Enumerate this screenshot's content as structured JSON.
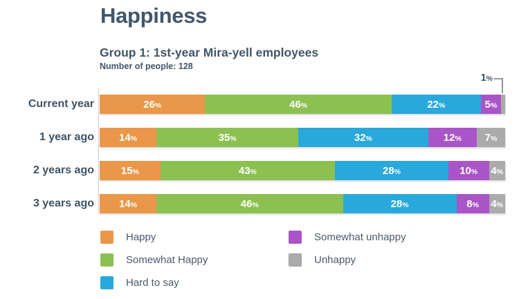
{
  "page": {
    "title": "Happiness",
    "subtitle": "Group 1: 1st-year Mira-yell employees",
    "sample_note": "Number of people: 128"
  },
  "chart_data": {
    "type": "bar",
    "orientation": "horizontal",
    "stacked": true,
    "unit": "%",
    "xlim": [
      0,
      100
    ],
    "grid": false,
    "legend_position": "bottom",
    "categories": [
      "Current year",
      "1 year ago",
      "2 years ago",
      "3 years ago"
    ],
    "series": [
      {
        "name": "Happy",
        "color": "#ea9749",
        "values": [
          26,
          14,
          15,
          14
        ]
      },
      {
        "name": "Somewhat Happy",
        "color": "#8cc152",
        "values": [
          46,
          35,
          43,
          46
        ]
      },
      {
        "name": "Hard to say",
        "color": "#29a8dc",
        "values": [
          22,
          32,
          28,
          28
        ]
      },
      {
        "name": "Somewhat unhappy",
        "color": "#a955c7",
        "values": [
          5,
          12,
          10,
          8
        ]
      },
      {
        "name": "Unhappy",
        "color": "#ababab",
        "values": [
          1,
          7,
          4,
          4
        ]
      }
    ],
    "annotation": {
      "value": "1",
      "unit": "%",
      "category": "Current year",
      "series": "Unhappy"
    },
    "label_min_inline_value": 2,
    "legend_columns": [
      [
        0,
        1,
        2
      ],
      [
        3,
        4
      ]
    ]
  }
}
